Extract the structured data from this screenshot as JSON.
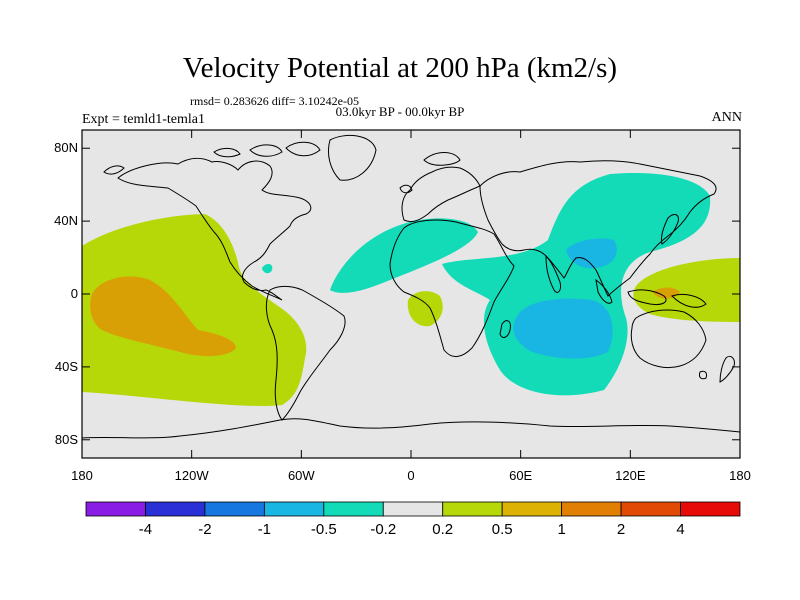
{
  "title": "Velocity Potential at 200 hPa (km2/s)",
  "stats_line": "rmsd= 0.283626 diff= 3.10242e-05",
  "period_line": "03.0kyr BP - 00.0kyr BP",
  "left_label": "Expt = temld1-temla1",
  "right_label": "ANN",
  "colors": {
    "land_ocean": "#e6e6e6",
    "coast": "#000000",
    "c_neg_1": "#13dbb8",
    "c_neg_2": "#1ab6e3",
    "c_pos_1": "#b6d808",
    "c_pos_2": "#d9a005"
  },
  "axes": {
    "lon_range": [
      -180,
      180
    ],
    "lat_range": [
      -90,
      90
    ],
    "lat_ticks": [
      {
        "value": 80,
        "label": "80N"
      },
      {
        "value": 40,
        "label": "40N"
      },
      {
        "value": 0,
        "label": "0"
      },
      {
        "value": -40,
        "label": "40S"
      },
      {
        "value": -80,
        "label": "80S"
      }
    ],
    "lon_ticks": [
      {
        "value": -180,
        "label": "180"
      },
      {
        "value": -120,
        "label": "120W"
      },
      {
        "value": -60,
        "label": "60W"
      },
      {
        "value": 0,
        "label": "0"
      },
      {
        "value": 60,
        "label": "60E"
      },
      {
        "value": 120,
        "label": "120E"
      },
      {
        "value": 180,
        "label": "180"
      }
    ]
  },
  "colorbar": {
    "colors": [
      "#8a1de3",
      "#2b30d6",
      "#1677e0",
      "#1ab6e3",
      "#13dbb8",
      "#e6e6e6",
      "#b6d808",
      "#dcb305",
      "#e07f04",
      "#e04a05",
      "#e60b08"
    ],
    "labels": [
      "-4",
      "-2",
      "-1",
      "-0.5",
      "-0.2",
      "0.2",
      "0.5",
      "1",
      "2",
      "4"
    ]
  }
}
